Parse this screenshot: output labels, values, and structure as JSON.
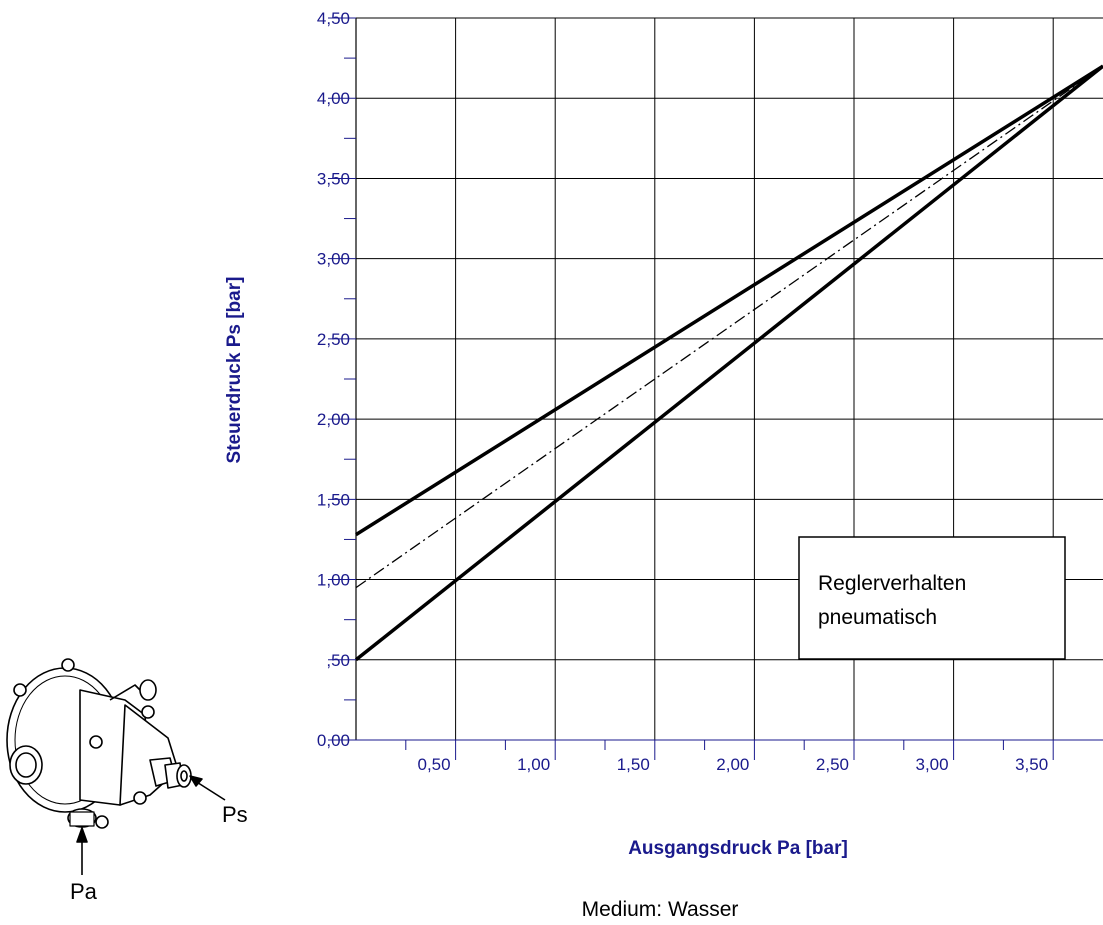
{
  "chart_data": {
    "type": "line",
    "xlabel": "Ausgangsdruck Pa [bar]",
    "ylabel": "Steuerdruck Ps [bar]",
    "xlim": [
      0,
      3.75
    ],
    "ylim": [
      0,
      4.5
    ],
    "x_ticks": [
      "0,50",
      "1,00",
      "1,50",
      "2,00",
      "2,50",
      "3,00",
      "3,50"
    ],
    "y_ticks": [
      "0,00",
      ",50",
      "1,00",
      "1,50",
      "2,00",
      "2,50",
      "3,00",
      "3,50",
      "4,00",
      "4,50"
    ],
    "grid": true,
    "series": [
      {
        "x": [
          0,
          3.75
        ],
        "y": [
          1.28,
          4.2
        ],
        "style": "solid"
      },
      {
        "x": [
          0,
          3.75
        ],
        "y": [
          0.95,
          4.2
        ],
        "style": "dash-dot"
      },
      {
        "x": [
          0,
          3.75
        ],
        "y": [
          0.5,
          4.2
        ],
        "style": "solid"
      }
    ],
    "annotation": [
      "Reglerverhalten",
      "pneumatisch"
    ]
  },
  "footnote": "Medium: Wasser",
  "device": {
    "label_ps": "Ps",
    "label_pa": "Pa"
  },
  "colors": {
    "axis_text": "#1a1a8c",
    "lines": "#000000"
  }
}
